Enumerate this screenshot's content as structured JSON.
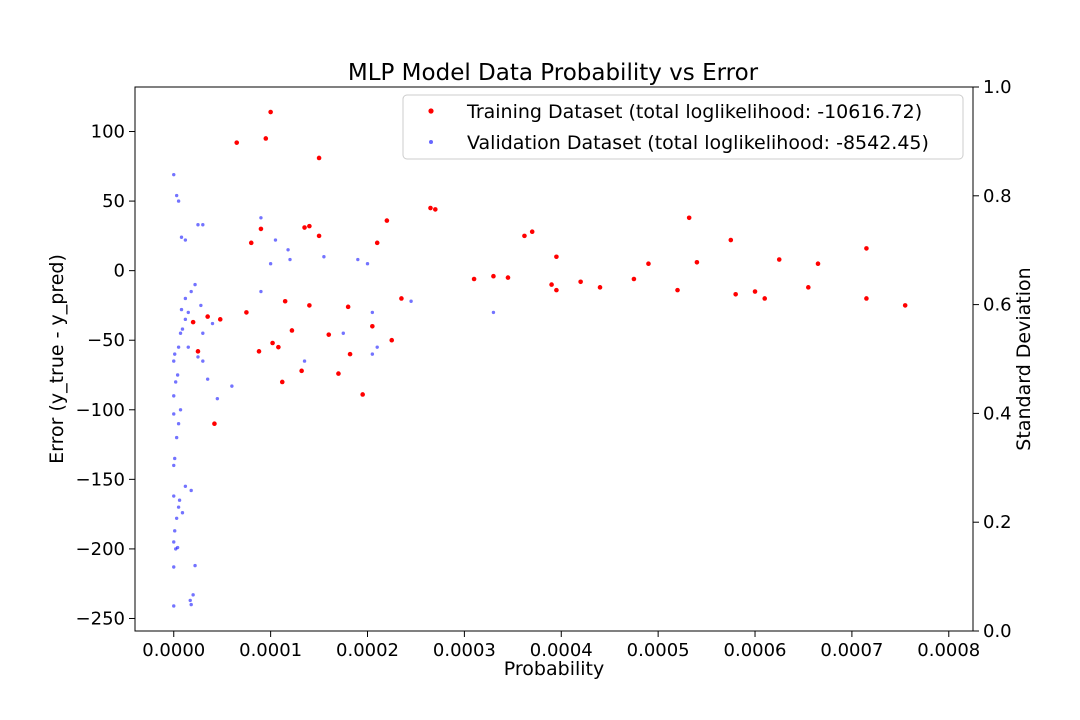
{
  "chart_data": {
    "type": "scatter",
    "title": "MLP Model Data Probability vs Error",
    "xlabel": "Probability",
    "ylabel": "Error (y_true - y_pred)",
    "y2label": "Standard Deviation",
    "xlim": [
      -4e-05,
      0.000825
    ],
    "ylim": [
      -259,
      132
    ],
    "y2lim": [
      0.0,
      1.0
    ],
    "x_ticks": [
      0.0,
      0.0001,
      0.0002,
      0.0003,
      0.0004,
      0.0005,
      0.0006,
      0.0007,
      0.0008
    ],
    "x_tick_labels": [
      "0.0000",
      "0.0001",
      "0.0002",
      "0.0003",
      "0.0004",
      "0.0005",
      "0.0006",
      "0.0007",
      "0.0008"
    ],
    "y_ticks": [
      100,
      50,
      0,
      -50,
      -100,
      -150,
      -200,
      -250
    ],
    "y_tick_labels": [
      "100",
      "50",
      "0",
      "−50",
      "−100",
      "−150",
      "−200",
      "−250"
    ],
    "y2_ticks": [
      1.0,
      0.8,
      0.6,
      0.4,
      0.2,
      0.0
    ],
    "y2_tick_labels": [
      "1.0",
      "0.8",
      "0.6",
      "0.4",
      "0.2",
      "0.0"
    ],
    "grid": false,
    "legend_position": "top-right",
    "series": [
      {
        "name": "Training Dataset (total loglikelihood: -10616.72)",
        "color": "#ff0000",
        "marker_size": 2.3,
        "points": [
          [
            0.0001,
            114
          ],
          [
            9.5e-05,
            95
          ],
          [
            6.5e-05,
            92
          ],
          [
            0.00015,
            81
          ],
          [
            0.000265,
            45
          ],
          [
            0.00027,
            44
          ],
          [
            0.000532,
            38
          ],
          [
            0.00022,
            36
          ],
          [
            0.00014,
            32
          ],
          [
            0.000135,
            31
          ],
          [
            9e-05,
            30
          ],
          [
            0.00037,
            28
          ],
          [
            0.000362,
            25
          ],
          [
            0.00015,
            25
          ],
          [
            0.000575,
            22
          ],
          [
            8e-05,
            20
          ],
          [
            0.00021,
            20
          ],
          [
            0.000715,
            16
          ],
          [
            0.000395,
            10
          ],
          [
            4.2e-05,
            -110
          ],
          [
            0.000195,
            -89
          ],
          [
            0.000112,
            -80
          ],
          [
            0.000132,
            -72
          ],
          [
            0.00017,
            -74
          ],
          [
            0.000182,
            -60
          ],
          [
            8.8e-05,
            -58
          ],
          [
            0.000108,
            -55
          ],
          [
            0.000102,
            -52
          ],
          [
            0.000122,
            -43
          ],
          [
            0.00016,
            -46
          ],
          [
            0.000225,
            -50
          ],
          [
            2.5e-05,
            -58
          ],
          [
            2e-05,
            -37
          ],
          [
            3.5e-05,
            -33
          ],
          [
            0.000205,
            -40
          ],
          [
            4.8e-05,
            -35
          ],
          [
            7.5e-05,
            -30
          ],
          [
            0.00014,
            -25
          ],
          [
            0.00018,
            -26
          ],
          [
            0.000115,
            -22
          ],
          [
            0.000235,
            -20
          ],
          [
            0.00039,
            -10
          ],
          [
            0.000655,
            -12
          ],
          [
            0.000755,
            -25
          ],
          [
            0.000715,
            -20
          ],
          [
            0.00061,
            -20
          ],
          [
            0.0006,
            -15
          ],
          [
            0.00058,
            -17
          ],
          [
            0.00052,
            -14
          ],
          [
            0.00044,
            -12
          ],
          [
            0.00042,
            -8
          ],
          [
            0.000475,
            -6
          ],
          [
            0.000625,
            8
          ],
          [
            0.000665,
            5
          ],
          [
            0.00054,
            6
          ],
          [
            0.00049,
            5
          ],
          [
            0.000395,
            -14
          ],
          [
            0.000345,
            -5
          ],
          [
            0.00033,
            -4
          ],
          [
            0.00031,
            -6
          ]
        ]
      },
      {
        "name": "Validation Dataset (total loglikelihood: -8542.45)",
        "color": "#0000ff",
        "opacity": 0.55,
        "marker_size": 1.7,
        "points": [
          [
            0.0,
            69
          ],
          [
            3e-06,
            54
          ],
          [
            5e-06,
            50
          ],
          [
            9e-05,
            38
          ],
          [
            2.5e-05,
            33
          ],
          [
            3e-05,
            33
          ],
          [
            0.0,
            -241
          ],
          [
            1.7e-05,
            -237
          ],
          [
            2e-05,
            -233
          ],
          [
            1.8e-05,
            -240
          ],
          [
            2.2e-05,
            -212
          ],
          [
            0.0,
            -213
          ],
          [
            2e-06,
            -200
          ],
          [
            4e-06,
            -199
          ],
          [
            0.0,
            -195
          ],
          [
            1e-06,
            -187
          ],
          [
            3e-06,
            -178
          ],
          [
            5e-06,
            -170
          ],
          [
            0.0,
            -162
          ],
          [
            6e-06,
            -165
          ],
          [
            9e-06,
            -174
          ],
          [
            1.2e-05,
            -155
          ],
          [
            1.8e-05,
            -158
          ],
          [
            0.0,
            -140
          ],
          [
            1e-06,
            -135
          ],
          [
            3e-06,
            -120
          ],
          [
            5e-06,
            -110
          ],
          [
            7e-06,
            -100
          ],
          [
            0.0,
            -103
          ],
          [
            0.0,
            -90
          ],
          [
            2e-06,
            -80
          ],
          [
            4e-06,
            -75
          ],
          [
            0.0,
            -65
          ],
          [
            1e-06,
            -60
          ],
          [
            5e-06,
            -55
          ],
          [
            7e-06,
            -45
          ],
          [
            9e-06,
            -42
          ],
          [
            1.2e-05,
            -35
          ],
          [
            1.5e-05,
            -30
          ],
          [
            2.5e-05,
            -62
          ],
          [
            3e-05,
            -45
          ],
          [
            3e-05,
            -65
          ],
          [
            3.5e-05,
            -78
          ],
          [
            4.5e-05,
            -92
          ],
          [
            6e-05,
            -83
          ],
          [
            1.5e-05,
            -55
          ],
          [
            8e-06,
            -28
          ],
          [
            1.2e-05,
            -20
          ],
          [
            1.8e-05,
            -15
          ],
          [
            2.2e-05,
            -10
          ],
          [
            2.8e-05,
            -25
          ],
          [
            4e-05,
            -38
          ],
          [
            9e-05,
            -15
          ],
          [
            0.000135,
            -65
          ],
          [
            0.000175,
            -45
          ],
          [
            0.000205,
            -60
          ],
          [
            0.000205,
            -30
          ],
          [
            0.000245,
            -22
          ],
          [
            0.00033,
            -30
          ],
          [
            0.00021,
            -55
          ],
          [
            0.00019,
            8
          ],
          [
            0.0002,
            5
          ],
          [
            0.000155,
            10
          ],
          [
            0.000118,
            15
          ],
          [
            0.000105,
            22
          ],
          [
            0.00012,
            8
          ],
          [
            0.0001,
            5
          ],
          [
            8e-06,
            24
          ],
          [
            1.2e-05,
            22
          ]
        ]
      }
    ]
  }
}
